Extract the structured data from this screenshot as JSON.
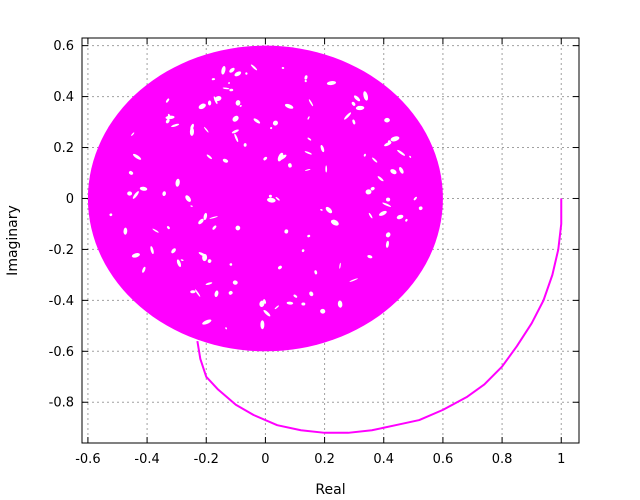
{
  "chart_data": {
    "type": "line",
    "title": "",
    "xlabel": "Real",
    "ylabel": "Imaginary",
    "xlim": [
      -0.62,
      1.06
    ],
    "ylim": [
      -0.96,
      0.63
    ],
    "xticks": [
      -0.6,
      -0.4,
      -0.2,
      0,
      0.2,
      0.4,
      0.6,
      0.8,
      1
    ],
    "xtick_labels": [
      "-0.6",
      "-0.4",
      "-0.2",
      "0",
      "0.2",
      "0.4",
      "0.6",
      "0.8",
      "1"
    ],
    "yticks": [
      -0.8,
      -0.6,
      -0.4,
      -0.2,
      0,
      0.2,
      0.4,
      0.6
    ],
    "ytick_labels": [
      "-0.8",
      "-0.6",
      "-0.4",
      "-0.2",
      "0",
      "0.2",
      "0.4",
      "0.6"
    ],
    "grid": true,
    "legend": "none",
    "series": [
      {
        "color": "#ff00ff",
        "x": [
          1.0,
          1.0,
          0.99,
          0.97,
          0.94,
          0.9,
          0.85,
          0.8,
          0.74,
          0.68,
          0.6,
          0.52,
          0.44,
          0.36,
          0.28,
          0.2,
          0.12,
          0.04,
          -0.04,
          -0.1,
          -0.16,
          -0.2,
          -0.22,
          -0.23
        ],
        "y": [
          0.0,
          -0.1,
          -0.2,
          -0.3,
          -0.4,
          -0.49,
          -0.58,
          -0.66,
          -0.73,
          -0.78,
          -0.83,
          -0.87,
          -0.89,
          -0.91,
          -0.92,
          -0.92,
          -0.91,
          -0.89,
          -0.85,
          -0.81,
          -0.75,
          -0.7,
          -0.63,
          -0.56
        ]
      }
    ],
    "dense_region": {
      "center": [
        0.0,
        0.0
      ],
      "radius": 0.6,
      "color": "#ff00ff"
    }
  }
}
